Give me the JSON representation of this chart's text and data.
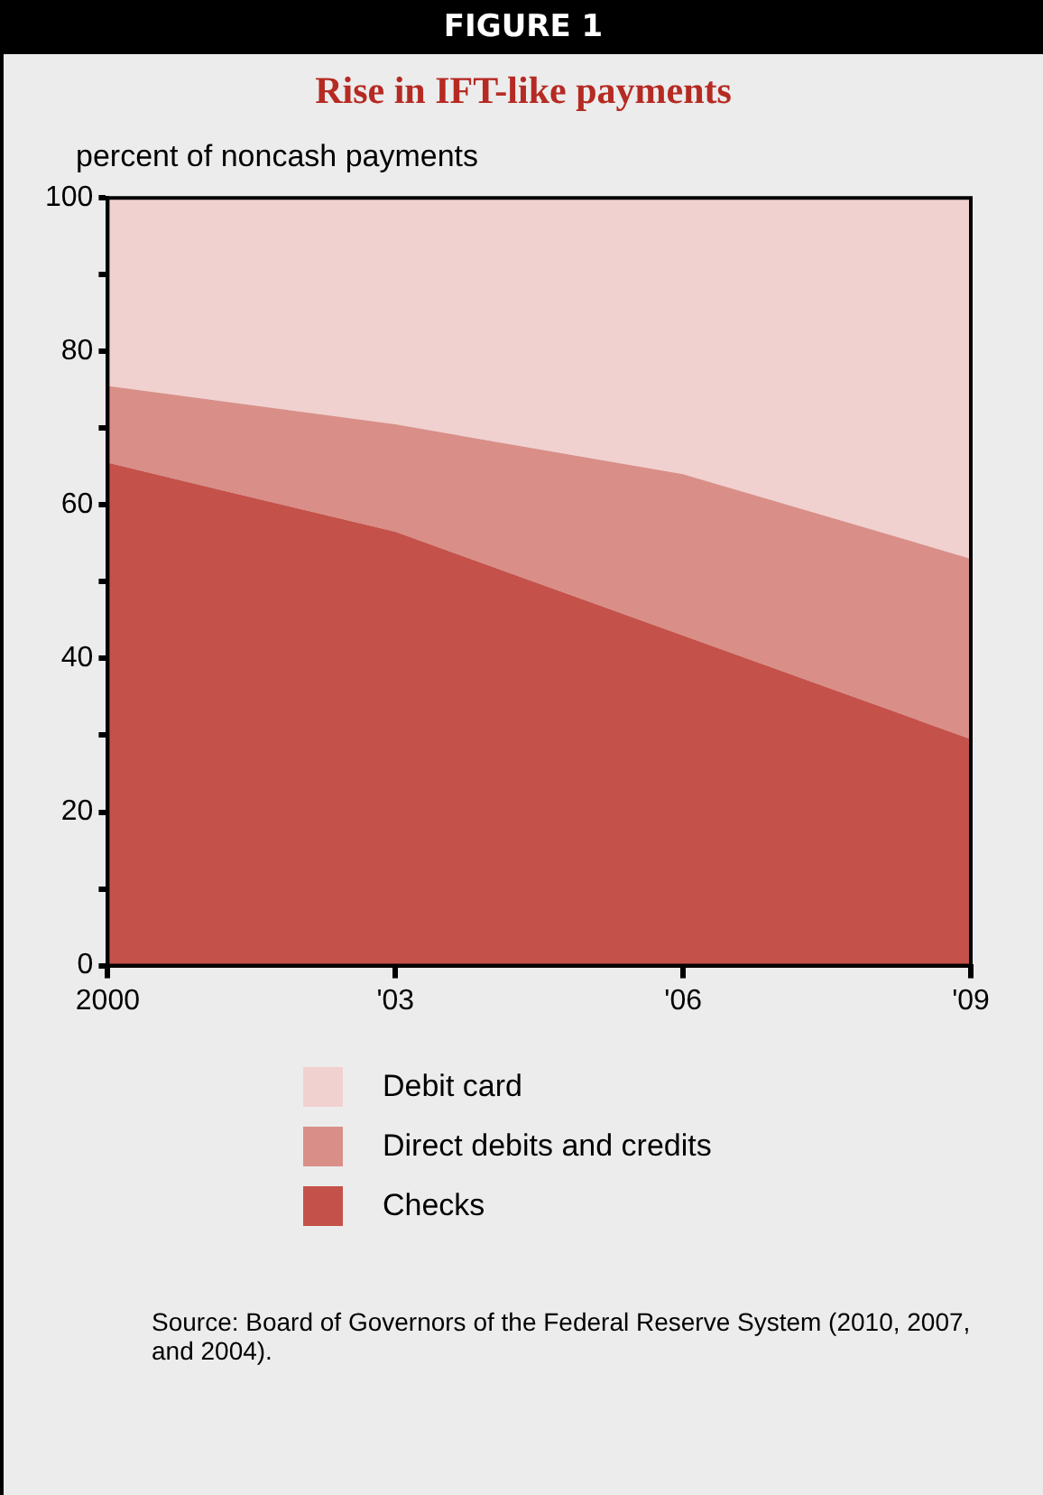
{
  "chart_data": {
    "type": "area",
    "title": "Rise in IFT-like payments",
    "ylabel": "percent of noncash payments",
    "stacked": true,
    "x": [
      2000,
      2003,
      2006,
      2009
    ],
    "series": [
      {
        "name": "Checks",
        "color": "#c5524a",
        "values": [
          65.5,
          56.5,
          43,
          29.5
        ]
      },
      {
        "name": "Direct debits and credits",
        "color": "#d98f88",
        "values": [
          10,
          14,
          21,
          23.5
        ]
      },
      {
        "name": "Debit card",
        "color": "#f1d1cf",
        "values": [
          24.5,
          29.5,
          36,
          47
        ]
      }
    ],
    "xlim": [
      2000,
      2009
    ],
    "xticks": [
      {
        "value": 2000,
        "label": "2000"
      },
      {
        "value": 2003,
        "label": "'03"
      },
      {
        "value": 2006,
        "label": "'06"
      },
      {
        "value": 2009,
        "label": "'09"
      }
    ],
    "ylim": [
      0,
      100
    ],
    "yticks": [
      0,
      {
        "value": 10,
        "label": null
      },
      20,
      {
        "value": 30,
        "label": null
      },
      40,
      {
        "value": 50,
        "label": null
      },
      60,
      {
        "value": 70,
        "label": null
      },
      80,
      {
        "value": 90,
        "label": null
      },
      100
    ],
    "grid": false,
    "legend": "bottom",
    "annotations": [
      "FIGURE 1",
      "Source: Board of Governors of the Federal Reserve System (2010, 2007, and 2004)."
    ]
  }
}
